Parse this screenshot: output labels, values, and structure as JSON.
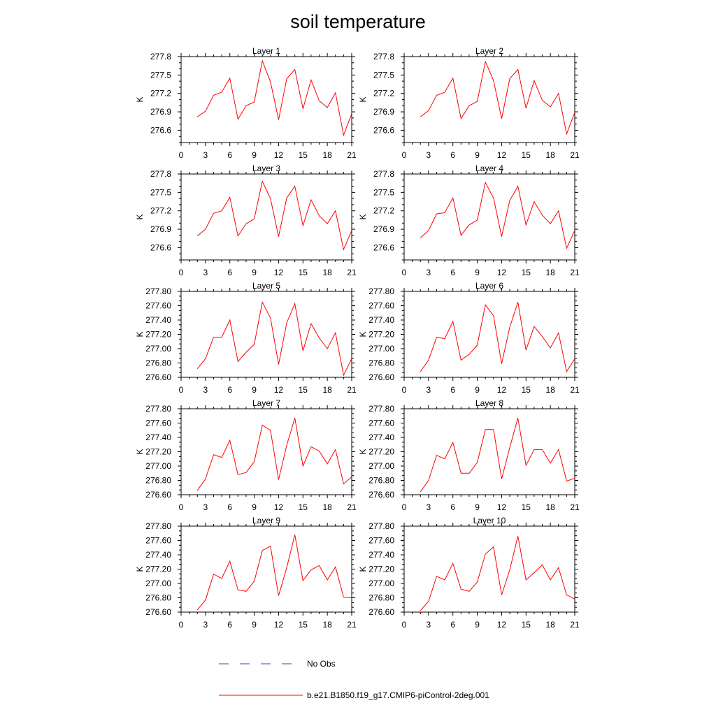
{
  "figure": {
    "title": "soil temperature",
    "colors": {
      "model": "#ff0000",
      "obs": "#3f3fbf",
      "axis": "#000000"
    },
    "legend": [
      {
        "label": "No Obs",
        "style": "dashed",
        "color": "#3f3fbf"
      },
      {
        "label": "b.e21.B1850.f19_g17.CMIP6-piControl-2deg.001",
        "style": "solid",
        "color": "#ff0000"
      }
    ]
  },
  "chart_data": [
    {
      "type": "line",
      "title": "Layer 1",
      "ylabel": "K",
      "xlim": [
        0,
        21
      ],
      "ylim": [
        276.4,
        277.8
      ],
      "xticks": [
        0,
        3,
        6,
        9,
        12,
        15,
        18,
        21
      ],
      "yticks": [
        276.6,
        276.9,
        277.2,
        277.5,
        277.8
      ],
      "ytick_labels": [
        "276.6",
        "276.9",
        "277.2",
        "277.5",
        "277.8"
      ],
      "x": [
        2,
        3,
        4,
        5,
        6,
        7,
        8,
        9,
        10,
        11,
        12,
        13,
        14,
        15,
        16,
        17,
        18,
        19,
        20,
        21
      ],
      "series": [
        {
          "name": "b.e21.B1850.f19_g17.CMIP6-piControl-2deg.001",
          "values": [
            276.82,
            276.91,
            277.17,
            277.22,
            277.45,
            276.78,
            277.0,
            277.06,
            277.73,
            277.39,
            276.77,
            277.44,
            277.59,
            276.95,
            277.42,
            277.08,
            276.97,
            277.21,
            276.52,
            276.87
          ]
        }
      ]
    },
    {
      "type": "line",
      "title": "Layer 2",
      "ylabel": "K",
      "xlim": [
        0,
        21
      ],
      "ylim": [
        276.4,
        277.8
      ],
      "xticks": [
        0,
        3,
        6,
        9,
        12,
        15,
        18,
        21
      ],
      "yticks": [
        276.6,
        276.9,
        277.2,
        277.5,
        277.8
      ],
      "ytick_labels": [
        "276.6",
        "276.9",
        "277.2",
        "277.5",
        "277.8"
      ],
      "x": [
        2,
        3,
        4,
        5,
        6,
        7,
        8,
        9,
        10,
        11,
        12,
        13,
        14,
        15,
        16,
        17,
        18,
        19,
        20,
        21
      ],
      "series": [
        {
          "name": "b.e21.B1850.f19_g17.CMIP6-piControl-2deg.001",
          "values": [
            276.82,
            276.92,
            277.17,
            277.22,
            277.45,
            276.79,
            277.0,
            277.07,
            277.72,
            277.41,
            276.79,
            277.44,
            277.59,
            276.96,
            277.41,
            277.09,
            276.98,
            277.2,
            276.54,
            276.89
          ]
        }
      ]
    },
    {
      "type": "line",
      "title": "Layer 3",
      "ylabel": "K",
      "xlim": [
        0,
        21
      ],
      "ylim": [
        276.4,
        277.8
      ],
      "xticks": [
        0,
        3,
        6,
        9,
        12,
        15,
        18,
        21
      ],
      "yticks": [
        276.6,
        276.9,
        277.2,
        277.5,
        277.8
      ],
      "ytick_labels": [
        "276.6",
        "276.9",
        "277.2",
        "277.5",
        "277.8"
      ],
      "x": [
        2,
        3,
        4,
        5,
        6,
        7,
        8,
        9,
        10,
        11,
        12,
        13,
        14,
        15,
        16,
        17,
        18,
        19,
        20,
        21
      ],
      "series": [
        {
          "name": "b.e21.B1850.f19_g17.CMIP6-piControl-2deg.001",
          "values": [
            276.79,
            276.9,
            277.16,
            277.2,
            277.42,
            276.79,
            276.99,
            277.07,
            277.68,
            277.4,
            276.78,
            277.41,
            277.6,
            276.96,
            277.38,
            277.12,
            276.99,
            277.2,
            276.57,
            276.88
          ]
        }
      ]
    },
    {
      "type": "line",
      "title": "Layer 4",
      "ylabel": "K",
      "xlim": [
        0,
        21
      ],
      "ylim": [
        276.4,
        277.8
      ],
      "xticks": [
        0,
        3,
        6,
        9,
        12,
        15,
        18,
        21
      ],
      "yticks": [
        276.6,
        276.9,
        277.2,
        277.5,
        277.8
      ],
      "ytick_labels": [
        "276.6",
        "276.9",
        "277.2",
        "277.5",
        "277.8"
      ],
      "x": [
        2,
        3,
        4,
        5,
        6,
        7,
        8,
        9,
        10,
        11,
        12,
        13,
        14,
        15,
        16,
        17,
        18,
        19,
        20,
        21
      ],
      "series": [
        {
          "name": "b.e21.B1850.f19_g17.CMIP6-piControl-2deg.001",
          "values": [
            276.76,
            276.88,
            277.15,
            277.17,
            277.41,
            276.8,
            276.97,
            277.05,
            277.66,
            277.41,
            276.78,
            277.37,
            277.6,
            276.97,
            277.35,
            277.13,
            276.99,
            277.2,
            276.59,
            276.88
          ]
        }
      ]
    },
    {
      "type": "line",
      "title": "Layer 5",
      "ylabel": "K",
      "xlim": [
        0,
        21
      ],
      "ylim": [
        276.6,
        277.8
      ],
      "xticks": [
        0,
        3,
        6,
        9,
        12,
        15,
        18,
        21
      ],
      "yticks": [
        276.6,
        276.8,
        277.0,
        277.2,
        277.4,
        277.6,
        277.8
      ],
      "ytick_labels": [
        "276.60",
        "276.80",
        "277.00",
        "277.20",
        "277.40",
        "277.60",
        "277.80"
      ],
      "x": [
        2,
        3,
        4,
        5,
        6,
        7,
        8,
        9,
        10,
        11,
        12,
        13,
        14,
        15,
        16,
        17,
        18,
        19,
        20,
        21
      ],
      "series": [
        {
          "name": "b.e21.B1850.f19_g17.CMIP6-piControl-2deg.001",
          "values": [
            276.72,
            276.86,
            277.16,
            277.16,
            277.4,
            276.82,
            276.95,
            277.06,
            277.65,
            277.43,
            276.78,
            277.36,
            277.63,
            276.97,
            277.35,
            277.15,
            277.0,
            277.22,
            276.63,
            276.86
          ]
        }
      ]
    },
    {
      "type": "line",
      "title": "Layer 6",
      "ylabel": "K",
      "xlim": [
        0,
        21
      ],
      "ylim": [
        276.6,
        277.8
      ],
      "xticks": [
        0,
        3,
        6,
        9,
        12,
        15,
        18,
        21
      ],
      "yticks": [
        276.6,
        276.8,
        277.0,
        277.2,
        277.4,
        277.6,
        277.8
      ],
      "ytick_labels": [
        "276.60",
        "276.80",
        "277.00",
        "277.20",
        "277.40",
        "277.60",
        "277.80"
      ],
      "x": [
        2,
        3,
        4,
        5,
        6,
        7,
        8,
        9,
        10,
        11,
        12,
        13,
        14,
        15,
        16,
        17,
        18,
        19,
        20,
        21
      ],
      "series": [
        {
          "name": "b.e21.B1850.f19_g17.CMIP6-piControl-2deg.001",
          "values": [
            276.68,
            276.84,
            277.16,
            277.14,
            277.38,
            276.84,
            276.92,
            277.05,
            277.61,
            277.46,
            276.79,
            277.3,
            277.65,
            276.98,
            277.31,
            277.17,
            277.01,
            277.22,
            276.68,
            276.86
          ]
        }
      ]
    },
    {
      "type": "line",
      "title": "Layer 7",
      "ylabel": "K",
      "xlim": [
        0,
        21
      ],
      "ylim": [
        276.6,
        277.8
      ],
      "xticks": [
        0,
        3,
        6,
        9,
        12,
        15,
        18,
        21
      ],
      "yticks": [
        276.6,
        276.8,
        277.0,
        277.2,
        277.4,
        277.6,
        277.8
      ],
      "ytick_labels": [
        "276.60",
        "276.80",
        "277.00",
        "277.20",
        "277.40",
        "277.60",
        "277.80"
      ],
      "x": [
        2,
        3,
        4,
        5,
        6,
        7,
        8,
        9,
        10,
        11,
        12,
        13,
        14,
        15,
        16,
        17,
        18,
        19,
        20,
        21
      ],
      "series": [
        {
          "name": "b.e21.B1850.f19_g17.CMIP6-piControl-2deg.001",
          "values": [
            276.66,
            276.82,
            277.16,
            277.12,
            277.36,
            276.88,
            276.91,
            277.06,
            277.57,
            277.5,
            276.81,
            277.29,
            277.67,
            277.0,
            277.27,
            277.21,
            277.03,
            277.23,
            276.75,
            276.85
          ]
        }
      ]
    },
    {
      "type": "line",
      "title": "Layer 8",
      "ylabel": "K",
      "xlim": [
        0,
        21
      ],
      "ylim": [
        276.6,
        277.8
      ],
      "xticks": [
        0,
        3,
        6,
        9,
        12,
        15,
        18,
        21
      ],
      "yticks": [
        276.6,
        276.8,
        277.0,
        277.2,
        277.4,
        277.6,
        277.8
      ],
      "ytick_labels": [
        "276.60",
        "276.80",
        "277.00",
        "277.20",
        "277.40",
        "277.60",
        "277.80"
      ],
      "x": [
        2,
        3,
        4,
        5,
        6,
        7,
        8,
        9,
        10,
        11,
        12,
        13,
        14,
        15,
        16,
        17,
        18,
        19,
        20,
        21
      ],
      "series": [
        {
          "name": "b.e21.B1850.f19_g17.CMIP6-piControl-2deg.001",
          "values": [
            276.64,
            276.8,
            277.15,
            277.1,
            277.33,
            276.9,
            276.9,
            277.05,
            277.51,
            277.51,
            276.82,
            277.26,
            277.67,
            277.01,
            277.23,
            277.23,
            277.04,
            277.23,
            276.79,
            276.83
          ]
        }
      ]
    },
    {
      "type": "line",
      "title": "Layer 9",
      "ylabel": "K",
      "xlim": [
        0,
        21
      ],
      "ylim": [
        276.6,
        277.8
      ],
      "xticks": [
        0,
        3,
        6,
        9,
        12,
        15,
        18,
        21
      ],
      "yticks": [
        276.6,
        276.8,
        277.0,
        277.2,
        277.4,
        277.6,
        277.8
      ],
      "ytick_labels": [
        "276.60",
        "276.80",
        "277.00",
        "277.20",
        "277.40",
        "277.60",
        "277.80"
      ],
      "x": [
        2,
        3,
        4,
        5,
        6,
        7,
        8,
        9,
        10,
        11,
        12,
        13,
        14,
        15,
        16,
        17,
        18,
        19,
        20,
        21
      ],
      "series": [
        {
          "name": "b.e21.B1850.f19_g17.CMIP6-piControl-2deg.001",
          "values": [
            276.63,
            276.77,
            277.13,
            277.07,
            277.31,
            276.91,
            276.89,
            277.03,
            277.46,
            277.52,
            276.83,
            277.22,
            277.68,
            277.04,
            277.19,
            277.25,
            277.05,
            277.23,
            276.81,
            276.8
          ]
        }
      ]
    },
    {
      "type": "line",
      "title": "Layer 10",
      "ylabel": "K",
      "xlim": [
        0,
        21
      ],
      "ylim": [
        276.6,
        277.8
      ],
      "xticks": [
        0,
        3,
        6,
        9,
        12,
        15,
        18,
        21
      ],
      "yticks": [
        276.6,
        276.8,
        277.0,
        277.2,
        277.4,
        277.6,
        277.8
      ],
      "ytick_labels": [
        "276.60",
        "276.80",
        "277.00",
        "277.20",
        "277.40",
        "277.60",
        "277.80"
      ],
      "x": [
        2,
        3,
        4,
        5,
        6,
        7,
        8,
        9,
        10,
        11,
        12,
        13,
        14,
        15,
        16,
        17,
        18,
        19,
        20,
        21
      ],
      "series": [
        {
          "name": "b.e21.B1850.f19_g17.CMIP6-piControl-2deg.001",
          "values": [
            276.62,
            276.75,
            277.1,
            277.05,
            277.28,
            276.92,
            276.89,
            277.02,
            277.41,
            277.51,
            276.84,
            277.19,
            277.66,
            277.05,
            277.15,
            277.26,
            277.05,
            277.22,
            276.84,
            276.78
          ]
        }
      ]
    }
  ]
}
